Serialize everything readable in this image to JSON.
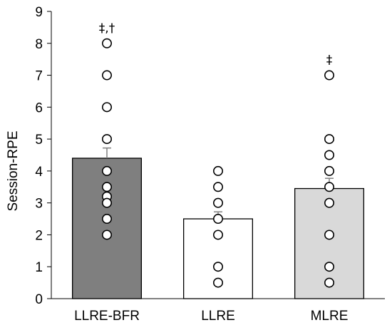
{
  "chart_data": {
    "type": "bar",
    "title": "",
    "xlabel": "",
    "ylabel": "Session-RPE",
    "ylim": [
      0,
      9
    ],
    "yticks": [
      0,
      1,
      2,
      3,
      4,
      5,
      6,
      7,
      8,
      9
    ],
    "grid": false,
    "legend": "none",
    "categories": [
      "LLRE-BFR",
      "LLRE",
      "MLRE"
    ],
    "values": [
      4.4,
      2.5,
      3.45
    ],
    "errors": [
      0.32,
      0.22,
      0.32
    ],
    "bar_colors": [
      "#7f7f7f",
      "#ffffff",
      "#d9d9d9"
    ],
    "annotations": [
      "‡,†",
      "",
      "‡"
    ],
    "individual_points": [
      [
        8,
        7,
        6,
        5,
        4,
        3.5,
        3.2,
        3,
        2.5,
        2
      ],
      [
        4,
        3.5,
        3,
        2.5,
        2,
        1,
        0.5
      ],
      [
        7,
        5,
        4.5,
        4,
        3.5,
        3,
        2,
        1,
        0.5
      ]
    ]
  }
}
